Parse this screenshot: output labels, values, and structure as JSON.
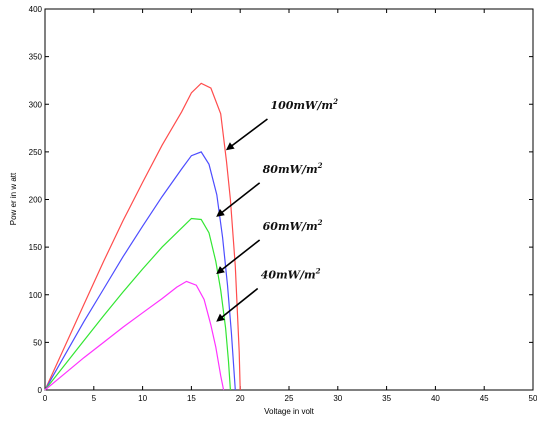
{
  "chart_data": {
    "type": "line",
    "title": "",
    "xlabel": "Voltage in volt",
    "ylabel": "Pow er in w att",
    "xlim": [
      0,
      50
    ],
    "ylim": [
      0,
      400
    ],
    "xticks": [
      0,
      5,
      10,
      15,
      20,
      25,
      30,
      35,
      40,
      45,
      50
    ],
    "yticks": [
      0,
      50,
      100,
      150,
      200,
      250,
      300,
      350,
      400
    ],
    "grid": false,
    "legend": "none",
    "series": [
      {
        "color": "#ff4d4d",
        "x": [
          0,
          2,
          4,
          6,
          8,
          10,
          12,
          14,
          15,
          16,
          17,
          18,
          18.6,
          19,
          19.5,
          19.9,
          20
        ],
        "y": [
          0,
          45,
          90,
          135,
          178,
          218,
          257,
          292,
          312,
          322,
          317,
          290,
          240,
          200,
          130,
          40,
          0
        ]
      },
      {
        "color": "#4d4dff",
        "x": [
          0,
          2,
          4,
          6,
          8,
          10,
          12,
          14,
          15,
          16,
          16.8,
          17.6,
          18.2,
          18.7,
          19.1,
          19.5
        ],
        "y": [
          0,
          36,
          72,
          106,
          140,
          172,
          203,
          232,
          246,
          250,
          237,
          205,
          160,
          110,
          60,
          0
        ]
      },
      {
        "color": "#33e633",
        "x": [
          0,
          2,
          4,
          6,
          8,
          10,
          12,
          14,
          15,
          16,
          16.8,
          17.5,
          18,
          18.5,
          18.8,
          19
        ],
        "y": [
          0,
          26,
          52,
          78,
          103,
          127,
          150,
          170,
          180,
          179,
          165,
          135,
          105,
          65,
          30,
          0
        ]
      },
      {
        "color": "#ff33ff",
        "x": [
          0,
          2,
          4,
          6,
          8,
          10,
          12,
          13.5,
          14.5,
          15.5,
          16.3,
          17,
          17.5,
          18,
          18.3
        ],
        "y": [
          0,
          17,
          34,
          50,
          66,
          81,
          96,
          108,
          114,
          110,
          95,
          68,
          45,
          15,
          0
        ]
      }
    ],
    "annotations": [
      {
        "text": "100mW/m",
        "sup": "2",
        "ax": 18.7,
        "ay": 253,
        "tx": 23.1,
        "ty": 295
      },
      {
        "text": "80mW/m",
        "sup": "2",
        "ax": 17.7,
        "ay": 183,
        "tx": 22.3,
        "ty": 228
      },
      {
        "text": "60mW/m",
        "sup": "2",
        "ax": 17.7,
        "ay": 123,
        "tx": 22.3,
        "ty": 168
      },
      {
        "text": "40mW/m",
        "sup": "2",
        "ax": 17.7,
        "ay": 73,
        "tx": 22.1,
        "ty": 117
      }
    ]
  }
}
